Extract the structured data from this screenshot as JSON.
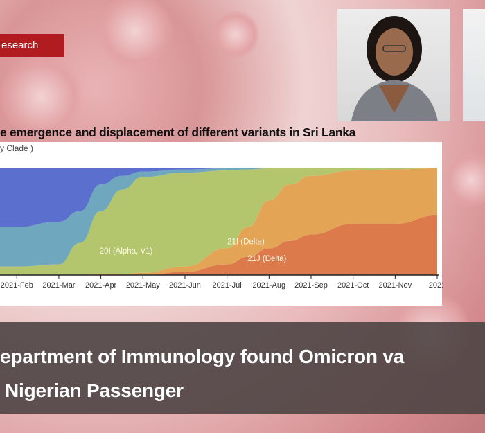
{
  "badge": {
    "label": "esearch"
  },
  "chart_data": {
    "type": "area",
    "title": "e emergence and displacement of different variants in Sri Lanka",
    "subtitle": "y Clade )",
    "xlabel": "",
    "ylabel": "",
    "x": [
      0.6,
      1,
      2,
      2.5,
      3,
      3.5,
      4,
      5,
      6,
      6.5,
      7,
      7.5,
      8,
      9,
      10,
      11
    ],
    "xlim": [
      0.6,
      11
    ],
    "ylim": [
      0,
      100
    ],
    "tick_labels": [
      "2021-Feb",
      "2021-Mar",
      "2021-Apr",
      "2021-May",
      "2021-Jun",
      "2021-Jul",
      "2021-Aug",
      "2021-Sep",
      "2021-Oct",
      "2021-Nov",
      "2021"
    ],
    "tick_values": [
      1,
      2,
      3,
      4,
      5,
      6,
      7,
      8,
      9,
      10,
      11
    ],
    "stacked": true,
    "normalized": true,
    "series": [
      {
        "name": "21J (Delta)",
        "color": "#dd7a4c",
        "values": [
          0,
          0,
          0,
          0,
          0,
          0,
          0,
          3,
          10,
          17,
          25,
          32,
          38,
          48,
          48,
          56
        ]
      },
      {
        "name": "21I (Delta)",
        "color": "#e3a455",
        "values": [
          0,
          0,
          0,
          0,
          1,
          1,
          2,
          5,
          15,
          28,
          45,
          53,
          55,
          50,
          51,
          44
        ]
      },
      {
        "name": "20I (Alpha, V1)",
        "color": "#b3c66e",
        "values": [
          8,
          8,
          10,
          30,
          59,
          79,
          90,
          88,
          73,
          54,
          30,
          15,
          7,
          2,
          1,
          0
        ]
      },
      {
        "name": "",
        "color": "#6fa8be",
        "values": [
          37,
          37,
          40,
          30,
          25,
          13,
          5,
          3,
          2,
          1,
          0,
          0,
          0,
          0,
          0,
          0
        ]
      },
      {
        "name": "",
        "color": "#5b6fcf",
        "values": [
          55,
          55,
          50,
          40,
          15,
          7,
          3,
          1,
          0,
          0,
          0,
          0,
          0,
          0,
          0,
          0
        ]
      }
    ],
    "annotations": [
      {
        "text": "20I (Alpha, V1)",
        "x": 3.6,
        "y": 20
      },
      {
        "text": "21I (Delta)",
        "x": 6.45,
        "y": 29
      },
      {
        "text": "21J (Delta)",
        "x": 6.95,
        "y": 13
      }
    ]
  },
  "headline": {
    "line1": "epartment of Immunology found Omicron va",
    "line2": "Nigerian Passenger"
  }
}
